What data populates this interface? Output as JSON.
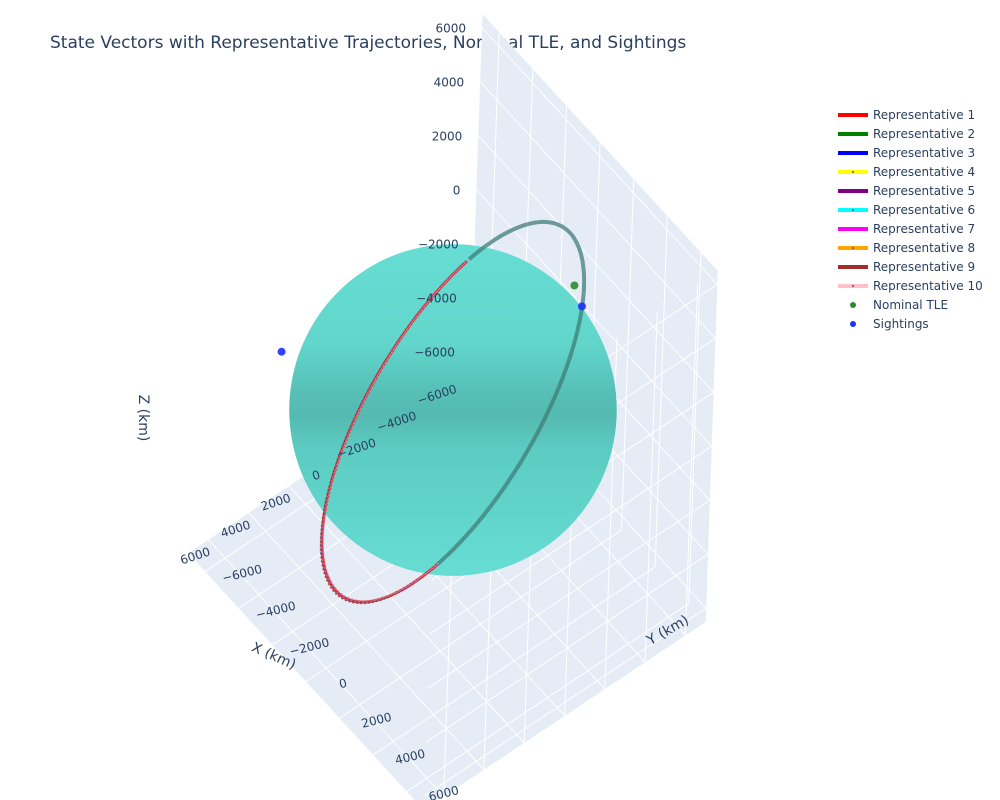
{
  "title": "State Vectors with Representative Trajectories, Nominal TLE, and Sightings",
  "chart_data": {
    "type": "scatter3d",
    "title": "State Vectors with Representative Trajectories, Nominal TLE, and Sightings",
    "axes": {
      "x": {
        "label": "X (km)",
        "range": [
          -7000,
          7000
        ],
        "ticks": [
          6000,
          4000,
          2000,
          0,
          -2000,
          -4000,
          -6000
        ],
        "tick_labels": [
          "6000",
          "4000",
          "2000",
          "0",
          "−2000",
          "−4000",
          "−6000"
        ]
      },
      "y": {
        "label": "Y (km)",
        "range": [
          -7000,
          7000
        ],
        "ticks": [
          -6000,
          -4000,
          -2000,
          0,
          2000,
          4000,
          6000
        ],
        "tick_labels": [
          "−6000",
          "−4000",
          "−2000",
          "0",
          "2000",
          "4000",
          "6000"
        ]
      },
      "z": {
        "label": "Z (km)",
        "range": [
          -6500,
          6500
        ],
        "ticks": [
          6000,
          4000,
          2000,
          0,
          -2000,
          -4000,
          -6000
        ],
        "tick_labels": [
          "6000",
          "4000",
          "2000",
          "0",
          "−2000",
          "−4000",
          "−6000"
        ]
      }
    },
    "earth": {
      "radius_km": 6371,
      "color": "#5fd8cc"
    },
    "orbit": {
      "radius_km": 6800,
      "inclination_deg": 45
    },
    "series": [
      {
        "name": "Representative 1",
        "color": "#ff0000",
        "mode": "lines"
      },
      {
        "name": "Representative 2",
        "color": "#008000",
        "mode": "lines"
      },
      {
        "name": "Representative 3",
        "color": "#0000ff",
        "mode": "lines"
      },
      {
        "name": "Representative 4",
        "color": "#ffff00",
        "mode": "lines+markers"
      },
      {
        "name": "Representative 5",
        "color": "#800080",
        "mode": "lines"
      },
      {
        "name": "Representative 6",
        "color": "#00ffff",
        "mode": "lines+markers"
      },
      {
        "name": "Representative 7",
        "color": "#ff00ff",
        "mode": "lines"
      },
      {
        "name": "Representative 8",
        "color": "#ffa500",
        "mode": "lines+markers"
      },
      {
        "name": "Representative 9",
        "color": "#a52a2a",
        "mode": "lines"
      },
      {
        "name": "Representative 10",
        "color": "#ffc0cb",
        "mode": "lines+markers"
      },
      {
        "name": "Nominal TLE",
        "color": "#2e8b2e",
        "mode": "markers",
        "points": [
          [
            -3200,
            3100,
            5200
          ]
        ]
      },
      {
        "name": "Sightings",
        "color": "#1f2fff",
        "mode": "markers",
        "points": [
          [
            -3000,
            3800,
            5000
          ],
          [
            3500,
            -6000,
            -100
          ]
        ]
      }
    ],
    "legend": "top-right",
    "grid": true
  }
}
